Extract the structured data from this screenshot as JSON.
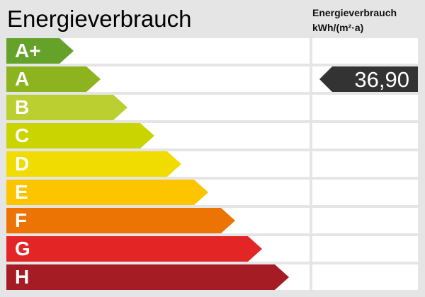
{
  "title": "Energieverbrauch",
  "subtitle_line1": "Energieverbrauch",
  "subtitle_line2": "kWh/(m²·a)",
  "classes": [
    {
      "label": "A+",
      "color": "#65a22a"
    },
    {
      "label": "A",
      "color": "#8db31f"
    },
    {
      "label": "B",
      "color": "#bccf30"
    },
    {
      "label": "C",
      "color": "#cad400"
    },
    {
      "label": "D",
      "color": "#f0dc00"
    },
    {
      "label": "E",
      "color": "#fcc500"
    },
    {
      "label": "F",
      "color": "#ec7405"
    },
    {
      "label": "G",
      "color": "#e32526"
    },
    {
      "label": "H",
      "color": "#a51c24"
    }
  ],
  "value": "36,90",
  "value_class": "A",
  "marker_color": "#333333"
}
